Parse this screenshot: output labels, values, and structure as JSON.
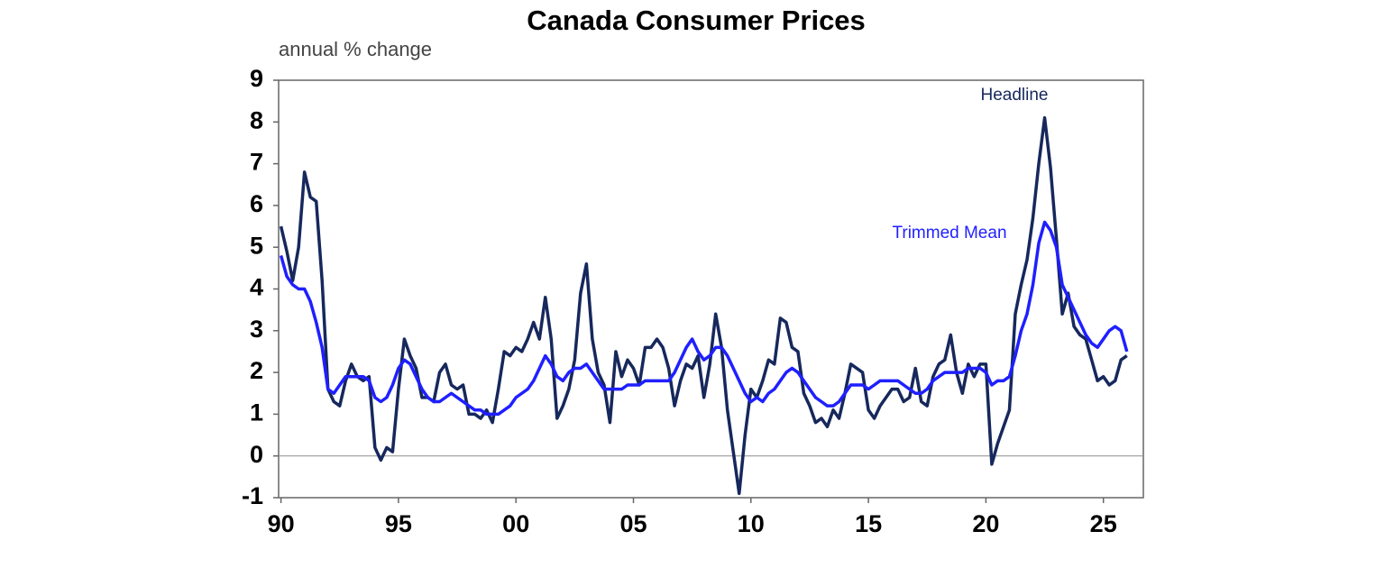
{
  "chart_data": {
    "type": "line",
    "title": "Canada Consumer Prices",
    "subtitle": "annual % change",
    "xlim": [
      1989.9,
      2026.7
    ],
    "ylim": [
      -1,
      9
    ],
    "yticks": [
      -1,
      0,
      1,
      2,
      3,
      4,
      5,
      6,
      7,
      8,
      9
    ],
    "xticks": [
      {
        "value": 1990,
        "label": "90"
      },
      {
        "value": 1995,
        "label": "95"
      },
      {
        "value": 2000,
        "label": "00"
      },
      {
        "value": 2005,
        "label": "05"
      },
      {
        "value": 2010,
        "label": "10"
      },
      {
        "value": 2015,
        "label": "15"
      },
      {
        "value": 2020,
        "label": "20"
      },
      {
        "value": 2025,
        "label": "25"
      }
    ],
    "zero_line": true,
    "x": [
      1990,
      1990.25,
      1990.5,
      1990.75,
      1991,
      1991.25,
      1991.5,
      1991.75,
      1992,
      1992.25,
      1992.5,
      1992.75,
      1993,
      1993.25,
      1993.5,
      1993.75,
      1994,
      1994.25,
      1994.5,
      1994.75,
      1995,
      1995.25,
      1995.5,
      1995.75,
      1996,
      1996.25,
      1996.5,
      1996.75,
      1997,
      1997.25,
      1997.5,
      1997.75,
      1998,
      1998.25,
      1998.5,
      1998.75,
      1999,
      1999.25,
      1999.5,
      1999.75,
      2000,
      2000.25,
      2000.5,
      2000.75,
      2001,
      2001.25,
      2001.5,
      2001.75,
      2002,
      2002.25,
      2002.5,
      2002.75,
      2003,
      2003.25,
      2003.5,
      2003.75,
      2004,
      2004.25,
      2004.5,
      2004.75,
      2005,
      2005.25,
      2005.5,
      2005.75,
      2006,
      2006.25,
      2006.5,
      2006.75,
      2007,
      2007.25,
      2007.5,
      2007.75,
      2008,
      2008.25,
      2008.5,
      2008.75,
      2009,
      2009.25,
      2009.5,
      2009.75,
      2010,
      2010.25,
      2010.5,
      2010.75,
      2011,
      2011.25,
      2011.5,
      2011.75,
      2012,
      2012.25,
      2012.5,
      2012.75,
      2013,
      2013.25,
      2013.5,
      2013.75,
      2014,
      2014.25,
      2014.5,
      2014.75,
      2015,
      2015.25,
      2015.5,
      2015.75,
      2016,
      2016.25,
      2016.5,
      2016.75,
      2017,
      2017.25,
      2017.5,
      2017.75,
      2018,
      2018.25,
      2018.5,
      2018.75,
      2019,
      2019.25,
      2019.5,
      2019.75,
      2020,
      2020.25,
      2020.5,
      2020.75,
      2021,
      2021.25,
      2021.5,
      2021.75,
      2022,
      2022.25,
      2022.5,
      2022.75,
      2023,
      2023.25,
      2023.5,
      2023.75,
      2024,
      2024.25,
      2024.5,
      2024.75,
      2025,
      2025.25,
      2025.5,
      2025.75,
      2026
    ],
    "series": [
      {
        "name": "Headline",
        "color": "#16285c",
        "width": 3.5,
        "values": [
          5.5,
          4.9,
          4.2,
          5.0,
          6.8,
          6.2,
          6.1,
          4.2,
          1.6,
          1.3,
          1.2,
          1.8,
          2.2,
          1.9,
          1.8,
          1.9,
          0.2,
          -0.1,
          0.2,
          0.1,
          1.6,
          2.8,
          2.4,
          2.1,
          1.4,
          1.4,
          1.3,
          2.0,
          2.2,
          1.7,
          1.6,
          1.7,
          1.0,
          1.0,
          0.9,
          1.1,
          0.8,
          1.6,
          2.5,
          2.4,
          2.6,
          2.5,
          2.8,
          3.2,
          2.8,
          3.8,
          2.8,
          0.9,
          1.2,
          1.6,
          2.3,
          3.9,
          4.6,
          2.8,
          2.0,
          1.7,
          0.8,
          2.5,
          1.9,
          2.3,
          2.1,
          1.7,
          2.6,
          2.6,
          2.8,
          2.6,
          2.1,
          1.2,
          1.8,
          2.2,
          2.1,
          2.4,
          1.4,
          2.2,
          3.4,
          2.6,
          1.1,
          0.1,
          -0.9,
          0.5,
          1.6,
          1.4,
          1.8,
          2.3,
          2.2,
          3.3,
          3.2,
          2.6,
          2.5,
          1.5,
          1.2,
          0.8,
          0.9,
          0.7,
          1.1,
          0.9,
          1.5,
          2.2,
          2.1,
          2.0,
          1.1,
          0.9,
          1.2,
          1.4,
          1.6,
          1.6,
          1.3,
          1.4,
          2.1,
          1.3,
          1.2,
          1.9,
          2.2,
          2.3,
          2.9,
          2.0,
          1.5,
          2.2,
          1.9,
          2.2,
          2.2,
          -0.2,
          0.3,
          0.7,
          1.1,
          3.4,
          4.1,
          4.7,
          5.7,
          7.0,
          8.1,
          6.9,
          5.2,
          3.4,
          3.9,
          3.1,
          2.9,
          2.8,
          2.3,
          1.8,
          1.9,
          1.7,
          1.8,
          2.3,
          2.4
        ]
      },
      {
        "name": "Trimmed Mean",
        "color": "#1f1fff",
        "width": 3.5,
        "values": [
          4.8,
          4.3,
          4.1,
          4.0,
          4.0,
          3.7,
          3.2,
          2.6,
          1.6,
          1.5,
          1.7,
          1.9,
          1.9,
          1.9,
          1.9,
          1.8,
          1.4,
          1.3,
          1.4,
          1.7,
          2.1,
          2.3,
          2.2,
          1.9,
          1.6,
          1.4,
          1.3,
          1.3,
          1.4,
          1.5,
          1.4,
          1.3,
          1.2,
          1.1,
          1.1,
          1.0,
          1.0,
          1.0,
          1.1,
          1.2,
          1.4,
          1.5,
          1.6,
          1.8,
          2.1,
          2.4,
          2.2,
          1.9,
          1.8,
          2.0,
          2.1,
          2.1,
          2.2,
          2.0,
          1.8,
          1.6,
          1.6,
          1.6,
          1.6,
          1.7,
          1.7,
          1.7,
          1.8,
          1.8,
          1.8,
          1.8,
          1.8,
          2.0,
          2.3,
          2.6,
          2.8,
          2.5,
          2.3,
          2.4,
          2.6,
          2.6,
          2.4,
          2.1,
          1.8,
          1.5,
          1.3,
          1.4,
          1.3,
          1.5,
          1.6,
          1.8,
          2.0,
          2.1,
          2.0,
          1.8,
          1.6,
          1.4,
          1.3,
          1.2,
          1.2,
          1.3,
          1.5,
          1.7,
          1.7,
          1.7,
          1.6,
          1.7,
          1.8,
          1.8,
          1.8,
          1.8,
          1.7,
          1.6,
          1.5,
          1.5,
          1.6,
          1.8,
          1.9,
          2.0,
          2.0,
          2.0,
          2.0,
          2.1,
          2.1,
          2.1,
          2.0,
          1.7,
          1.8,
          1.8,
          1.9,
          2.4,
          3.0,
          3.4,
          4.1,
          5.1,
          5.6,
          5.4,
          5.0,
          4.1,
          3.8,
          3.5,
          3.2,
          2.9,
          2.7,
          2.6,
          2.8,
          3.0,
          3.1,
          3.0,
          2.5
        ]
      }
    ]
  }
}
